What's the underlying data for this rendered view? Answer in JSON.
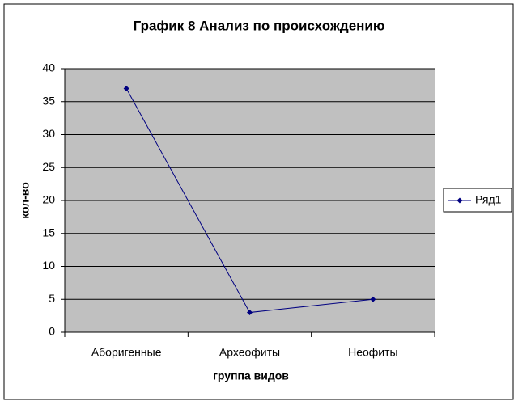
{
  "chart_data": {
    "type": "line",
    "title": "График 8 Анализ по происхождению",
    "x_label": "группа видов",
    "y_label": "кол-во",
    "categories": [
      "Аборигенные",
      "Археофиты",
      "Неофиты"
    ],
    "series": [
      {
        "name": "Ряд1",
        "color": "#000080",
        "values": [
          37,
          3,
          5
        ]
      }
    ],
    "ylim": [
      0,
      40
    ],
    "yticks": [
      0,
      5,
      10,
      15,
      20,
      25,
      30,
      35,
      40
    ],
    "grid": true,
    "legend": "right"
  }
}
